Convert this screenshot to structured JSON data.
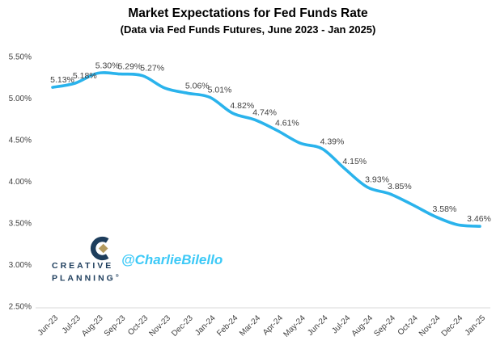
{
  "watermark": {
    "handle": "@CharlieBilello"
  },
  "branding": {
    "line1": "CREATIVE",
    "line2": "PLANNING",
    "trademark": "®"
  },
  "colors": {
    "line": "#2ab3ec",
    "watermark": "#3cc9f7",
    "brand_navy": "#1d3d5c",
    "brand_gold": "#b49b5f",
    "label": "#404040",
    "axis_line": "#d9d9d9"
  },
  "chart_data": {
    "type": "line",
    "title": "Market Expectations for Fed Funds Rate",
    "subtitle": "(Data via Fed Funds Futures, June 2023 - Jan 2025)",
    "smoothed": true,
    "grid": false,
    "legend": false,
    "categories": [
      "Jun-23",
      "Jul-23",
      "Aug-23",
      "Sep-23",
      "Oct-23",
      "Nov-23",
      "Dec-23",
      "Jan-24",
      "Feb-24",
      "Mar-24",
      "Apr-24",
      "May-24",
      "Jun-24",
      "Jul-24",
      "Aug-24",
      "Sep-24",
      "Oct-24",
      "Nov-24",
      "Dec-24",
      "Jan-25"
    ],
    "values": [
      5.13,
      5.18,
      5.3,
      5.29,
      5.27,
      5.12,
      5.06,
      5.01,
      4.82,
      4.74,
      4.61,
      4.46,
      4.39,
      4.15,
      3.93,
      3.85,
      3.72,
      3.58,
      3.48,
      3.46
    ],
    "data_labels": [
      "5.13%",
      "5.18%",
      "5.30%",
      "5.29%",
      "5.27%",
      null,
      "5.06%",
      "5.01%",
      "4.82%",
      "4.74%",
      "4.61%",
      null,
      "4.39%",
      "4.15%",
      "3.93%",
      "3.85%",
      null,
      "3.58%",
      null,
      "3.46%"
    ],
    "x_axis": {
      "label_rotation_deg": -45
    },
    "y_axis": {
      "min": 2.5,
      "max": 5.5,
      "ticks": [
        {
          "label": "5.50%",
          "value": 5.5
        },
        {
          "label": "5.00%",
          "value": 5.0
        },
        {
          "label": "4.50%",
          "value": 4.5
        },
        {
          "label": "4.00%",
          "value": 4.0
        },
        {
          "label": "3.50%",
          "value": 3.5
        },
        {
          "label": "3.00%",
          "value": 3.0
        },
        {
          "label": "2.50%",
          "value": 2.5
        }
      ]
    }
  }
}
